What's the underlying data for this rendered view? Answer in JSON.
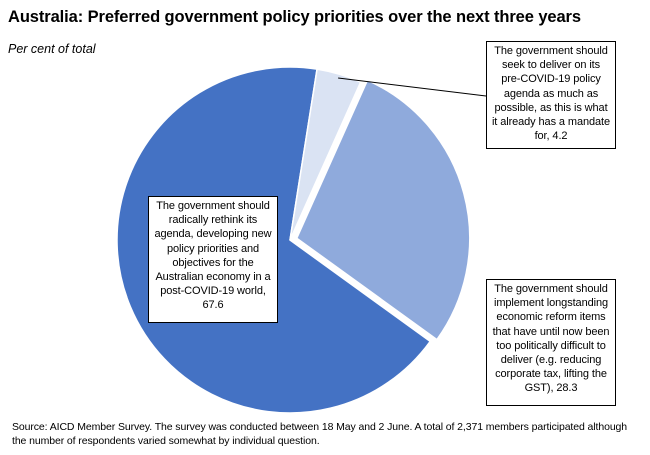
{
  "chart_data": {
    "type": "pie",
    "title": "Australia: Preferred government policy priorities over the next three years",
    "subtitle": "Per cent of total",
    "slices": [
      {
        "label": "The government should radically rethink its agenda, developing new policy priorities and objectives for the Australian economy in a post-COVID-19 world, 67.6",
        "value": 67.6,
        "color": "#4472c4"
      },
      {
        "label": "The government should seek to deliver on its pre-COVID-19 policy agenda as much as possible, as this is what it already has a mandate for, 4.2",
        "value": 4.2,
        "color": "#dae3f3"
      },
      {
        "label": "The government should implement longstanding economic reform items that have until now been too politically difficult to deliver (e.g. reducing corporate tax, lifting the GST), 28.3",
        "value": 28.3,
        "color": "#8faadc"
      }
    ],
    "source": "Source: AICD Member Survey.  The survey was conducted between 18 May and 2 June.  A total of 2,371 members participated although the number of respondents varied somewhat by individual question."
  }
}
